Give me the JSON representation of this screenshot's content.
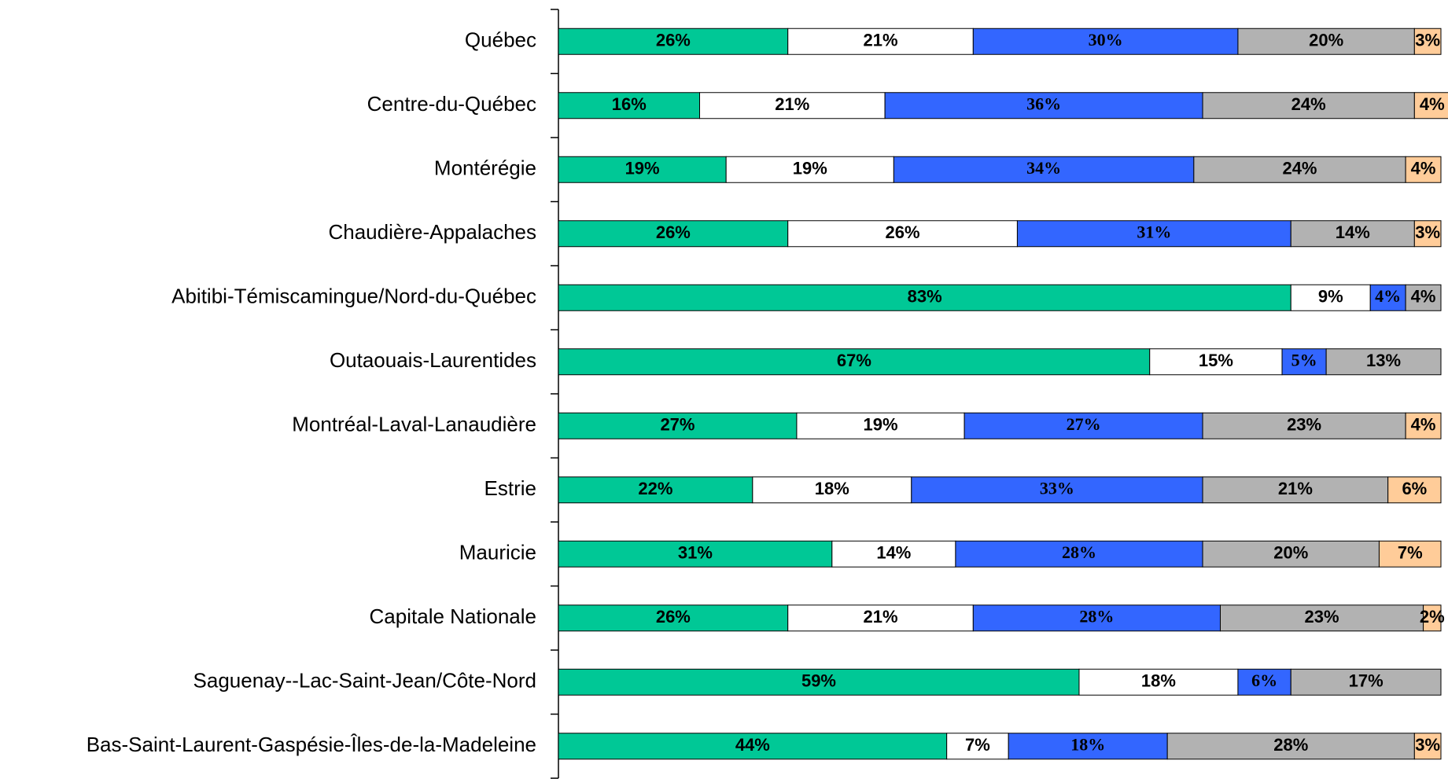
{
  "chart_data": {
    "type": "stacked-barh",
    "categories": [
      "Québec",
      "Centre-du-Québec",
      "Montérégie",
      "Chaudière-Appalaches",
      "Abitibi-Témiscamingue/Nord-du-Québec",
      "Outaouais-Laurentides",
      "Montréal-Laval-Lanaudière",
      "Estrie",
      "Mauricie",
      "Capitale Nationale",
      "Saguenay--Lac-Saint-Jean/Côte-Nord",
      "Bas-Saint-Laurent-Gaspésie-Îles-de-la-Madeleine"
    ],
    "xlim": [
      0,
      100
    ],
    "series": [
      {
        "color": "#00c896",
        "values": [
          26,
          16,
          19,
          26,
          83,
          67,
          27,
          22,
          31,
          26,
          59,
          44
        ],
        "value_labels": [
          "26%",
          "16%",
          "19%",
          "26%",
          "83%",
          "67%",
          "27%",
          "22%",
          "31%",
          "26%",
          "59%",
          "44%"
        ]
      },
      {
        "color": "#ffffff",
        "values": [
          21,
          21,
          19,
          26,
          9,
          15,
          19,
          18,
          14,
          21,
          18,
          7
        ],
        "value_labels": [
          "21%",
          "21%",
          "19%",
          "26%",
          "9%",
          "15%",
          "19%",
          "18%",
          "14%",
          "21%",
          "18%",
          "7%"
        ]
      },
      {
        "color": "#3366ff",
        "values": [
          30,
          36,
          34,
          31,
          4,
          5,
          27,
          33,
          28,
          28,
          6,
          18
        ],
        "value_labels": [
          "30%",
          "36%",
          "34%",
          "31%",
          "4%",
          "5%",
          "27%",
          "33%",
          "28%",
          "28%",
          "6%",
          "18%"
        ]
      },
      {
        "color": "#b2b2b2",
        "values": [
          20,
          24,
          24,
          14,
          4,
          13,
          23,
          21,
          20,
          23,
          17,
          28
        ],
        "value_labels": [
          "20%",
          "24%",
          "24%",
          "14%",
          "4%",
          "13%",
          "23%",
          "21%",
          "20%",
          "23%",
          "17%",
          "28%"
        ]
      },
      {
        "color": "#ffcc99",
        "values": [
          3,
          4,
          4,
          3,
          null,
          null,
          4,
          6,
          7,
          2,
          null,
          3
        ],
        "value_labels": [
          "3%",
          "4%",
          "4%",
          "3%",
          null,
          null,
          "4%",
          "6%",
          "7%",
          "2%",
          null,
          "3%"
        ]
      }
    ]
  }
}
